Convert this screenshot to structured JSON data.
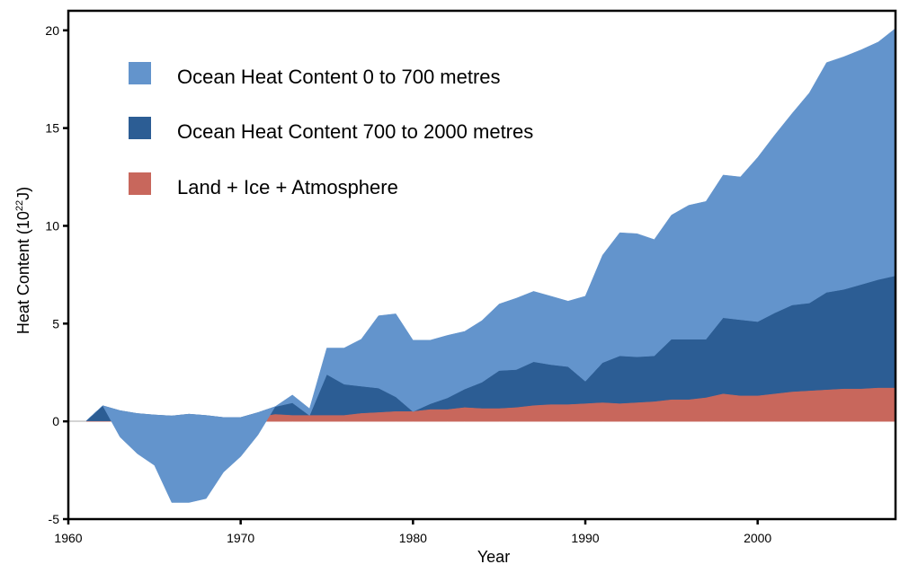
{
  "chart_data": {
    "type": "area",
    "stacked": true,
    "title": "",
    "xlabel": "Year",
    "ylabel": "Heat Content (10²²J)",
    "xlim": [
      1960,
      2008
    ],
    "ylim": [
      -5,
      21
    ],
    "xticks": [
      1960,
      1970,
      1980,
      1990,
      2000
    ],
    "yticks": [
      -5,
      0,
      5,
      10,
      15,
      20
    ],
    "grid": false,
    "legend_position": "top-left",
    "x": [
      1960,
      1961,
      1962,
      1963,
      1964,
      1965,
      1966,
      1967,
      1968,
      1969,
      1970,
      1971,
      1972,
      1973,
      1974,
      1975,
      1976,
      1977,
      1978,
      1979,
      1980,
      1981,
      1982,
      1983,
      1984,
      1985,
      1986,
      1987,
      1988,
      1989,
      1990,
      1991,
      1992,
      1993,
      1994,
      1995,
      1996,
      1997,
      1998,
      1999,
      2000,
      2001,
      2002,
      2003,
      2004,
      2005,
      2006,
      2007,
      2008
    ],
    "series": [
      {
        "name": "Land + Ice + Atmosphere",
        "color": "#c8675c",
        "values": [
          0,
          0,
          0,
          0,
          0,
          0,
          0,
          0,
          0,
          0,
          0.05,
          0.2,
          0.35,
          0.3,
          0.3,
          0.3,
          0.3,
          0.4,
          0.45,
          0.5,
          0.5,
          0.6,
          0.6,
          0.7,
          0.65,
          0.65,
          0.7,
          0.8,
          0.85,
          0.85,
          0.9,
          0.95,
          0.9,
          0.95,
          1.0,
          1.1,
          1.1,
          1.2,
          1.4,
          1.3,
          1.3,
          1.4,
          1.5,
          1.55,
          1.6,
          1.65,
          1.65,
          1.7,
          1.7
        ]
      },
      {
        "name": "Ocean Heat Content 700 to 2000 metres",
        "color": "#2c5d94",
        "values": [
          0,
          0,
          0.8,
          0.55,
          0.4,
          0.33,
          0.28,
          0.37,
          0.3,
          0.2,
          0.15,
          0.25,
          0.4,
          0.65,
          0,
          2.1,
          1.6,
          1.4,
          1.25,
          0.75,
          0,
          0.3,
          0.6,
          0.95,
          1.35,
          1.95,
          1.95,
          2.25,
          2.05,
          1.95,
          1.15,
          2.05,
          2.45,
          2.35,
          2.35,
          3.1,
          3.1,
          3.0,
          3.9,
          3.9,
          3.8,
          4.15,
          4.45,
          4.5,
          5.0,
          5.1,
          5.35,
          5.55,
          5.75
        ]
      },
      {
        "name": "Ocean Heat Content 0 to 700 metres",
        "color": "#6394cc",
        "values": [
          0,
          0,
          0,
          -1.35,
          -2.05,
          -2.58,
          -4.43,
          -4.52,
          -4.25,
          -2.8,
          -2.0,
          -1.15,
          0,
          0.4,
          0.35,
          1.35,
          1.85,
          2.4,
          3.7,
          4.25,
          3.65,
          3.25,
          3.2,
          2.95,
          3.15,
          3.4,
          3.65,
          3.6,
          3.5,
          3.35,
          4.35,
          5.5,
          6.3,
          6.3,
          5.95,
          6.35,
          6.85,
          7.05,
          7.3,
          7.3,
          8.4,
          9.1,
          9.8,
          10.75,
          11.75,
          11.9,
          12.0,
          12.15,
          12.65
        ]
      }
    ],
    "legend": [
      {
        "label": "Ocean Heat Content 0 to 700 metres",
        "color": "#6394cc"
      },
      {
        "label": "Ocean Heat Content 700 to 2000 metres",
        "color": "#2c5d94"
      },
      {
        "label": "Land + Ice + Atmosphere",
        "color": "#c8675c"
      }
    ]
  }
}
